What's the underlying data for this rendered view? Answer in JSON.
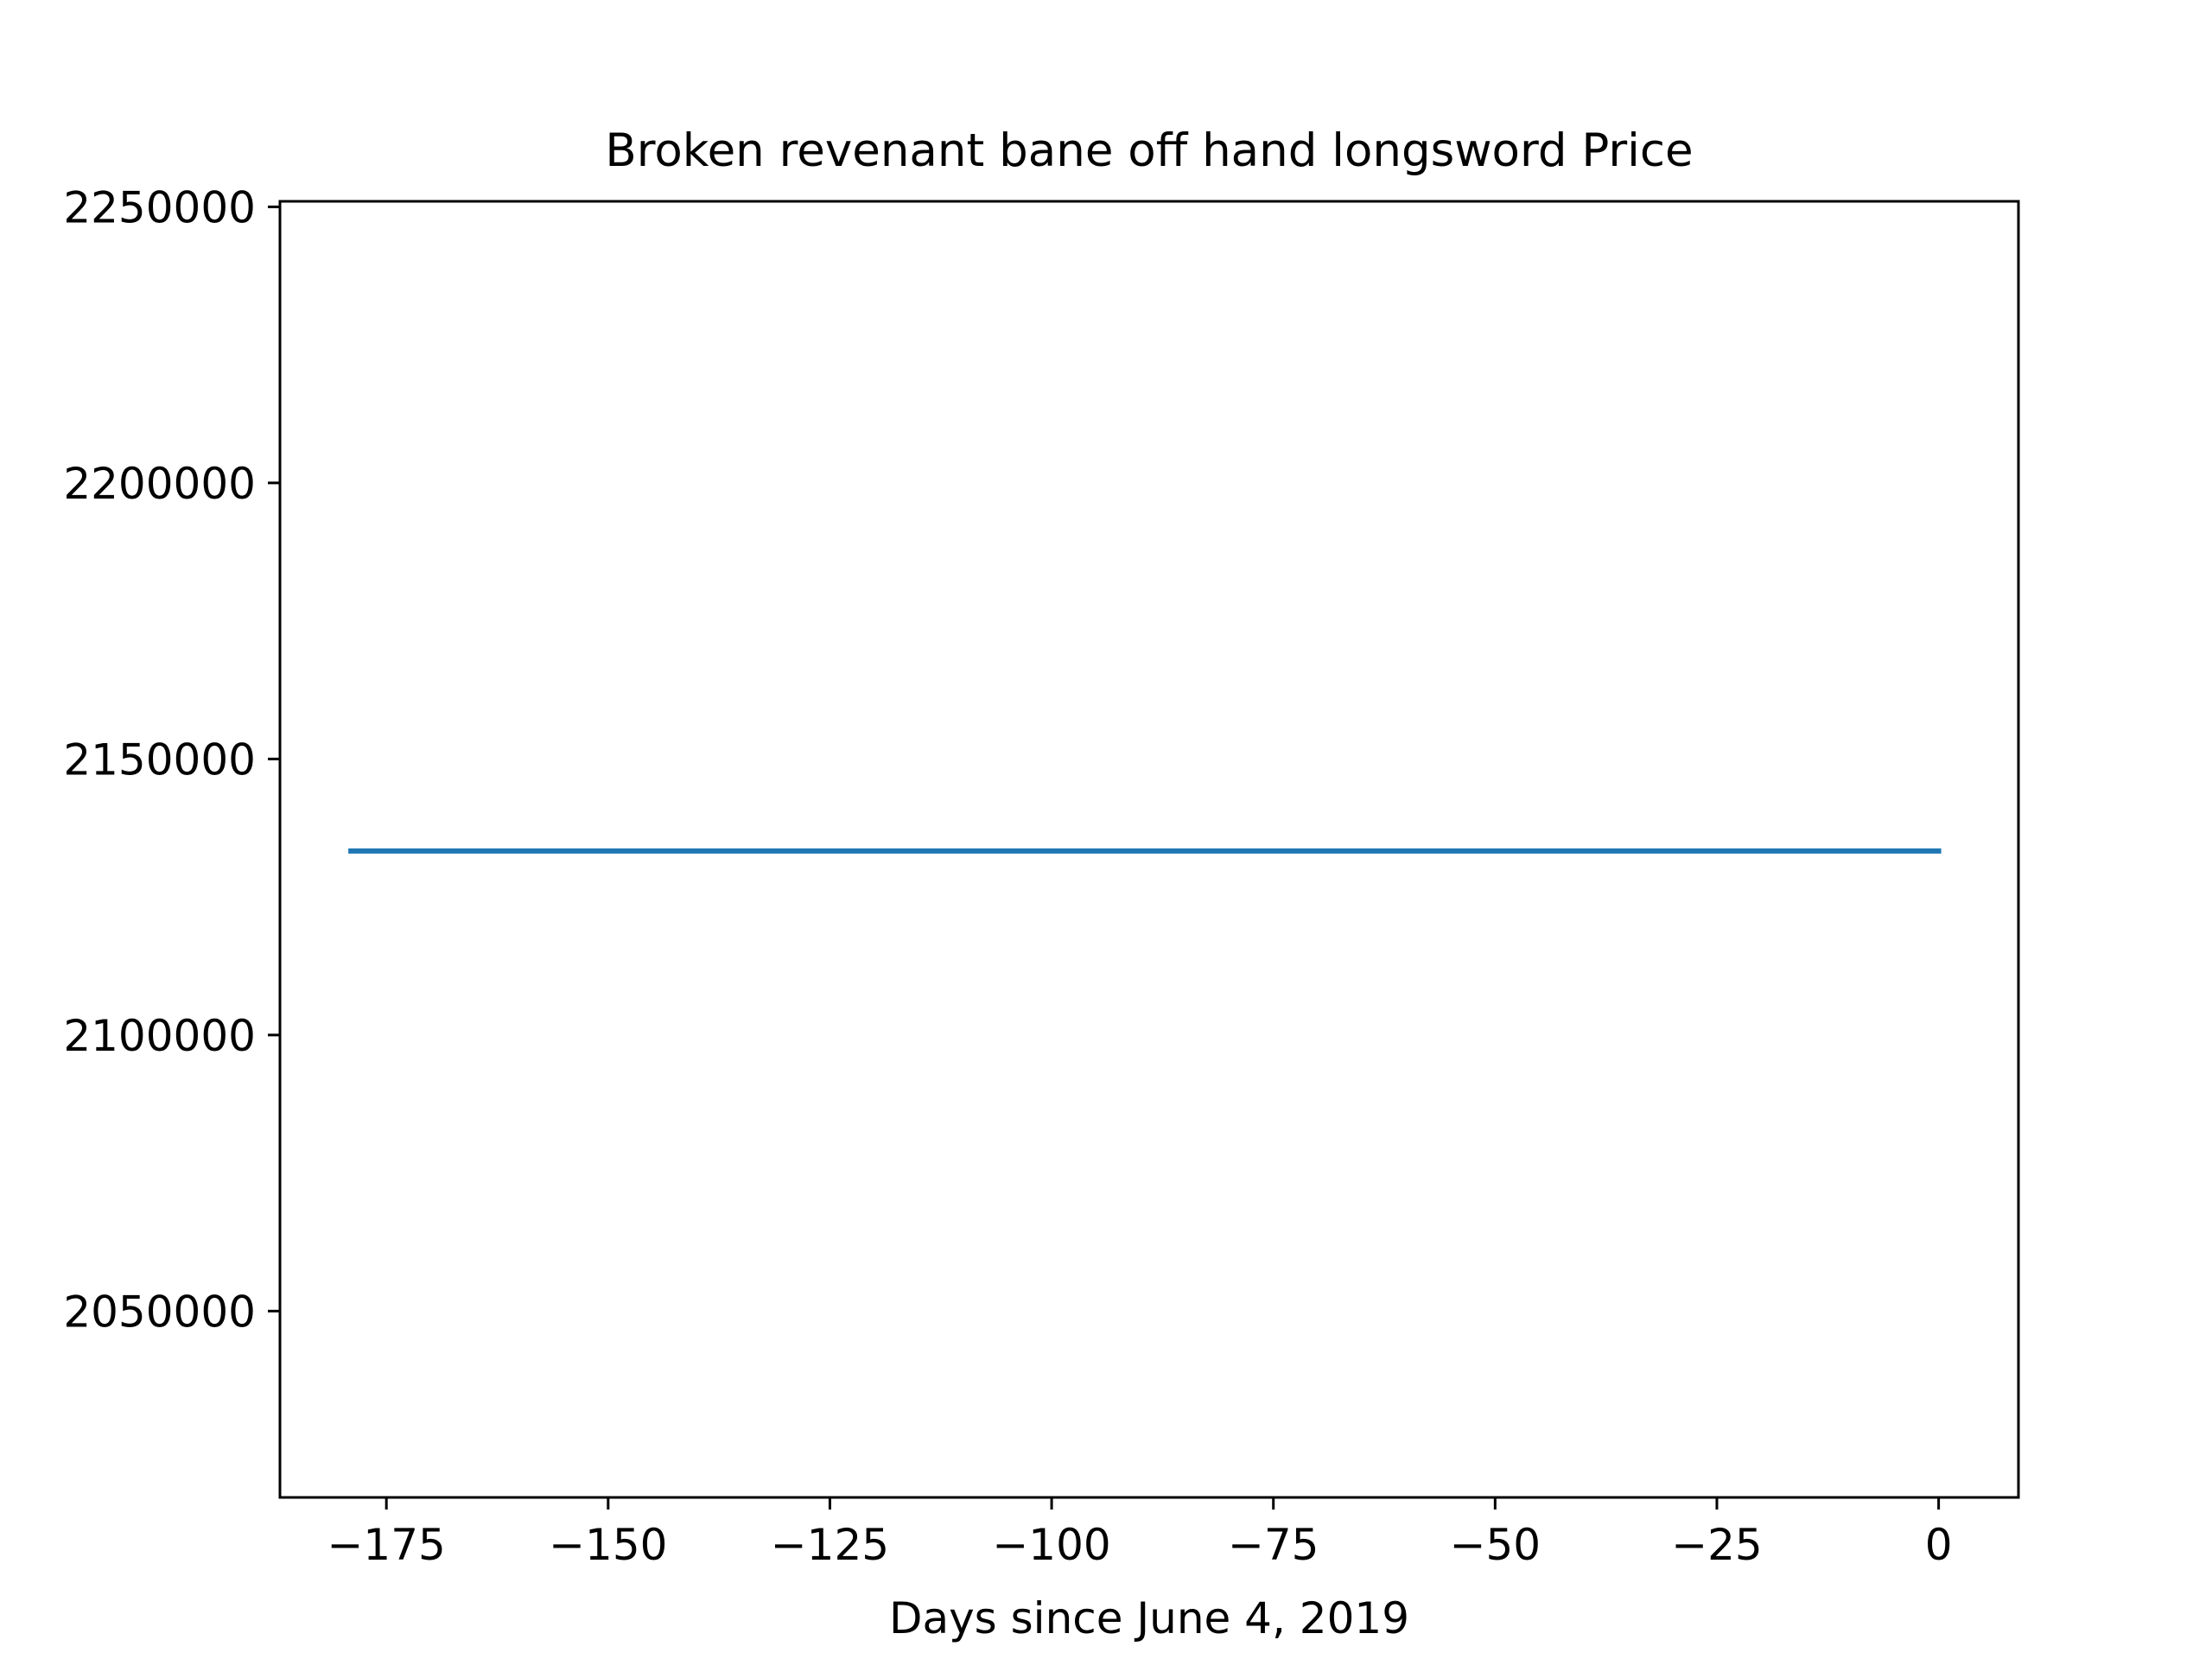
{
  "chart_data": {
    "type": "line",
    "title": "Broken revenant bane off hand longsword Price",
    "xlabel": "Days since June 4, 2019",
    "ylabel": "",
    "xlim": [
      -187,
      9
    ],
    "ylim": [
      2016250,
      2251000
    ],
    "x_ticks": [
      -175,
      -150,
      -125,
      -100,
      -75,
      -50,
      -25,
      0
    ],
    "x_tick_labels": [
      "−175",
      "−150",
      "−125",
      "−100",
      "−75",
      "−50",
      "−25",
      "0"
    ],
    "y_ticks": [
      2050000,
      2100000,
      2150000,
      2200000,
      2250000
    ],
    "y_tick_labels": [
      "2050000",
      "2100000",
      "2150000",
      "2200000",
      "2250000"
    ],
    "grid": false,
    "legend": false,
    "series": [
      {
        "color": "#1f77b4",
        "x": [
          -179,
          0
        ],
        "y": [
          2133333,
          2133333
        ]
      }
    ]
  }
}
